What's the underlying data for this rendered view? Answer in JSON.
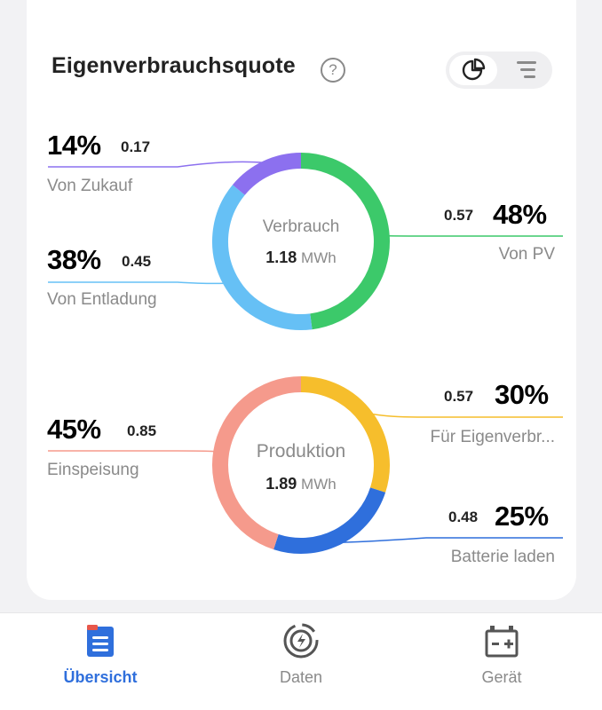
{
  "header": {
    "title": "Eigenverbrauchsquote",
    "help_icon": "?"
  },
  "consumption": {
    "center_label": "Verbrauch",
    "center_value": "1.18",
    "center_unit": "MWh",
    "segments": [
      {
        "key": "pv",
        "pct": "48%",
        "value": "0.57",
        "label": "Von PV",
        "fraction": 0.48,
        "color": "#3cc96a"
      },
      {
        "key": "entladung",
        "pct": "38%",
        "value": "0.45",
        "label": "Von Entladung",
        "fraction": 0.38,
        "color": "#66c0f5"
      },
      {
        "key": "zukauf",
        "pct": "14%",
        "value": "0.17",
        "label": "Von Zukauf",
        "fraction": 0.14,
        "color": "#8c70ef"
      }
    ]
  },
  "production": {
    "center_label": "Produktion",
    "center_value": "1.89",
    "center_unit": "MWh",
    "segments": [
      {
        "key": "eigenverbrauch",
        "pct": "30%",
        "value": "0.57",
        "label": "Für Eigenverbr...",
        "fraction": 0.3,
        "color": "#f6be2c"
      },
      {
        "key": "batterie",
        "pct": "25%",
        "value": "0.48",
        "label": "Batterie laden",
        "fraction": 0.25,
        "color": "#2f6fdc"
      },
      {
        "key": "einspeisung",
        "pct": "45%",
        "value": "0.85",
        "label": "Einspeisung",
        "fraction": 0.45,
        "color": "#f59a8c"
      }
    ]
  },
  "tabbar": {
    "tabs": [
      {
        "label": "Übersicht",
        "icon": "overview-icon",
        "active": true
      },
      {
        "label": "Daten",
        "icon": "data-icon",
        "active": false
      },
      {
        "label": "Gerät",
        "icon": "device-icon",
        "active": false
      }
    ]
  },
  "colors": {
    "accent": "#2f6fdc",
    "muted": "#8a8a8a"
  }
}
